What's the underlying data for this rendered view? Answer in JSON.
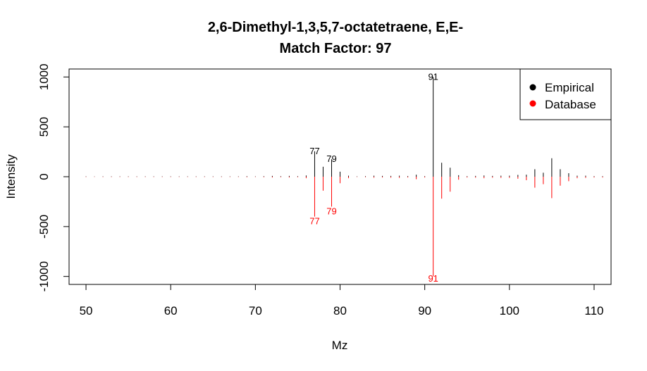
{
  "chart_data": {
    "type": "bar",
    "title": "2,6-Dimethyl-1,3,5,7-octatetraene, E,E-",
    "subtitle": "Match Factor: 97",
    "xlabel": "Mz",
    "ylabel": "Intensity",
    "xlim": [
      48,
      112
    ],
    "ylim": [
      -1080,
      1080
    ],
    "x_ticks": [
      50,
      60,
      70,
      80,
      90,
      100,
      110
    ],
    "y_ticks": [
      -1000,
      -500,
      0,
      500,
      1000
    ],
    "legend_position": "top-right",
    "series": [
      {
        "name": "Empirical",
        "color": "#000000",
        "x": [
          50,
          51,
          52,
          53,
          54,
          55,
          56,
          57,
          58,
          59,
          60,
          61,
          62,
          63,
          64,
          65,
          66,
          67,
          68,
          69,
          70,
          71,
          72,
          73,
          74,
          75,
          76,
          77,
          78,
          79,
          80,
          81,
          82,
          83,
          84,
          85,
          86,
          87,
          88,
          89,
          90,
          91,
          92,
          93,
          94,
          95,
          96,
          97,
          98,
          99,
          100,
          101,
          102,
          103,
          104,
          105,
          106,
          107,
          108,
          109,
          110,
          111
        ],
        "values": [
          3,
          2,
          3,
          3,
          3,
          3,
          3,
          3,
          3,
          3,
          3,
          3,
          3,
          3,
          3,
          3,
          3,
          3,
          3,
          5,
          3,
          5,
          8,
          5,
          8,
          5,
          12,
          255,
          100,
          175,
          50,
          10,
          3,
          5,
          10,
          8,
          8,
          10,
          6,
          20,
          5,
          1000,
          140,
          90,
          15,
          5,
          8,
          12,
          8,
          10,
          10,
          18,
          20,
          75,
          40,
          185,
          75,
          35,
          10,
          10,
          5,
          5
        ],
        "labels": [
          {
            "x": 77,
            "text": "77"
          },
          {
            "x": 79,
            "text": "79"
          },
          {
            "x": 91,
            "text": "91"
          }
        ]
      },
      {
        "name": "Database",
        "color": "#ff0000",
        "x": [
          50,
          51,
          52,
          53,
          54,
          55,
          56,
          57,
          58,
          59,
          60,
          61,
          62,
          63,
          64,
          65,
          66,
          67,
          68,
          69,
          70,
          71,
          72,
          73,
          74,
          75,
          76,
          77,
          78,
          79,
          80,
          81,
          82,
          83,
          84,
          85,
          86,
          87,
          88,
          89,
          90,
          91,
          92,
          93,
          94,
          95,
          96,
          97,
          98,
          99,
          100,
          101,
          102,
          103,
          104,
          105,
          106,
          107,
          108,
          109,
          110,
          111
        ],
        "values": [
          -3,
          -2,
          -3,
          -3,
          -3,
          -3,
          -3,
          -3,
          -3,
          -3,
          -3,
          -3,
          -3,
          -3,
          -3,
          -3,
          -3,
          -3,
          -3,
          -5,
          -3,
          -5,
          -8,
          -5,
          -8,
          -5,
          -15,
          -400,
          -140,
          -300,
          -65,
          -15,
          -3,
          -5,
          -10,
          -8,
          -10,
          -12,
          -8,
          -25,
          -8,
          -1000,
          -220,
          -150,
          -30,
          -8,
          -10,
          -15,
          -10,
          -12,
          -12,
          -20,
          -35,
          -110,
          -75,
          -215,
          -90,
          -45,
          -15,
          -12,
          -8,
          -8
        ],
        "labels": [
          {
            "x": 77,
            "text": "77"
          },
          {
            "x": 79,
            "text": "79"
          },
          {
            "x": 91,
            "text": "91"
          }
        ]
      }
    ]
  }
}
